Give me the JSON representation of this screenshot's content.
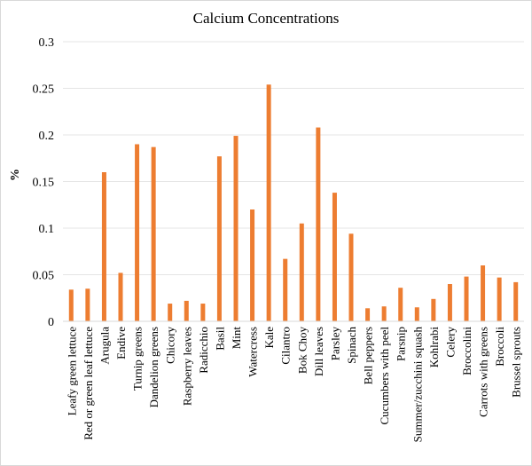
{
  "chart_data": {
    "type": "bar",
    "title": "Calcium Concentrations",
    "ylabel": "%",
    "xlabel": "",
    "ylim": [
      0,
      0.3
    ],
    "yticks": [
      0,
      0.05,
      0.1,
      0.15,
      0.2,
      0.25,
      0.3
    ],
    "ytick_labels": [
      "0",
      "0.05",
      "0.1",
      "0.15",
      "0.2",
      "0.25",
      "0.3"
    ],
    "grid": true,
    "legend": "none",
    "bar_color": "#ED7D31",
    "categories": [
      "Leafy green lettuce",
      "Red or green leaf lettuce",
      "Arugula",
      "Endive",
      "Turnip greens",
      "Dandelion greens",
      "Chicory",
      "Raspberry leaves",
      "Radicchio",
      "Basil",
      "Mint",
      "Watercress",
      "Kale",
      "Cilantro",
      "Bok Choy",
      "Dill leaves",
      "Parsley",
      "Spinach",
      "Bell peppers",
      "Cucumbers with peel",
      "Parsnip",
      "Summer/zucchini squash",
      "Kohlrabi",
      "Celery",
      "Broccolini",
      "Carrots with greens",
      "Broccoli",
      "Brussel sprouts"
    ],
    "values": [
      0.034,
      0.035,
      0.16,
      0.052,
      0.19,
      0.187,
      0.019,
      0.022,
      0.019,
      0.177,
      0.199,
      0.12,
      0.254,
      0.067,
      0.105,
      0.208,
      0.138,
      0.094,
      0.014,
      0.016,
      0.036,
      0.015,
      0.024,
      0.04,
      0.048,
      0.06,
      0.047,
      0.042
    ]
  }
}
